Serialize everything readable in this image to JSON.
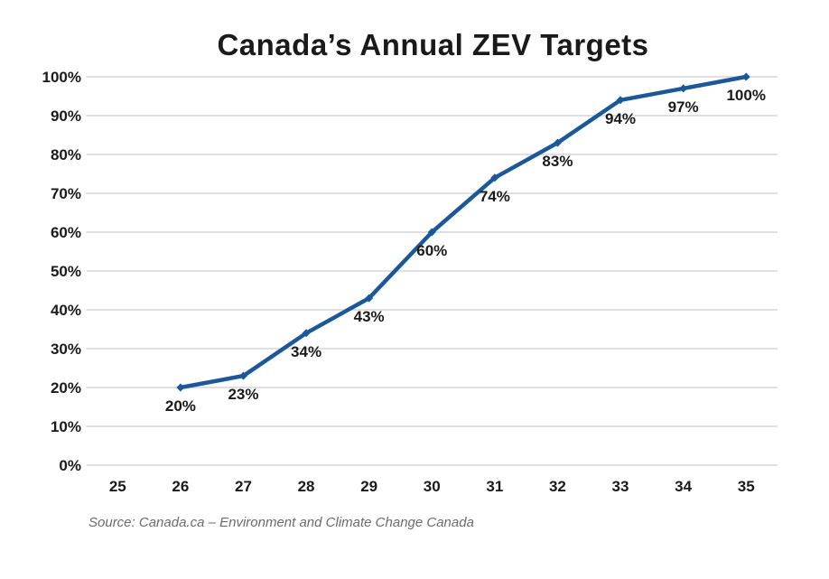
{
  "title": "Canada’s Annual ZEV Targets",
  "source_note": "Source: Canada.ca – Environment and Climate Change Canada",
  "colors": {
    "line": "#1B5899",
    "grid": "#D6D6D6",
    "text": "#1a1a1a",
    "source_text": "#6b6b6b",
    "background": "#ffffff"
  },
  "chart_data": {
    "type": "line",
    "title": "Canada’s Annual ZEV Targets",
    "x": [
      26,
      27,
      28,
      29,
      30,
      31,
      32,
      33,
      34,
      35
    ],
    "values": [
      20,
      23,
      34,
      43,
      60,
      74,
      83,
      94,
      97,
      100
    ],
    "data_labels": [
      "20%",
      "23%",
      "34%",
      "43%",
      "60%",
      "74%",
      "83%",
      "94%",
      "97%",
      "100%"
    ],
    "x_tick_values": [
      25,
      26,
      27,
      28,
      29,
      30,
      31,
      32,
      33,
      34,
      35
    ],
    "x_tick_labels": [
      "25",
      "26",
      "27",
      "28",
      "29",
      "30",
      "31",
      "32",
      "33",
      "34",
      "35"
    ],
    "y_tick_values": [
      0,
      10,
      20,
      30,
      40,
      50,
      60,
      70,
      80,
      90,
      100
    ],
    "y_tick_labels": [
      "0%",
      "10%",
      "20%",
      "30%",
      "40%",
      "50%",
      "60%",
      "70%",
      "80%",
      "90%",
      "100%"
    ],
    "xlim": [
      24.5,
      35.5
    ],
    "ylim": [
      0,
      100
    ],
    "grid": "horizontal-only",
    "legend": "none",
    "marker": "diamond",
    "line_color": "#1B5899",
    "xlabel": "",
    "ylabel": ""
  }
}
